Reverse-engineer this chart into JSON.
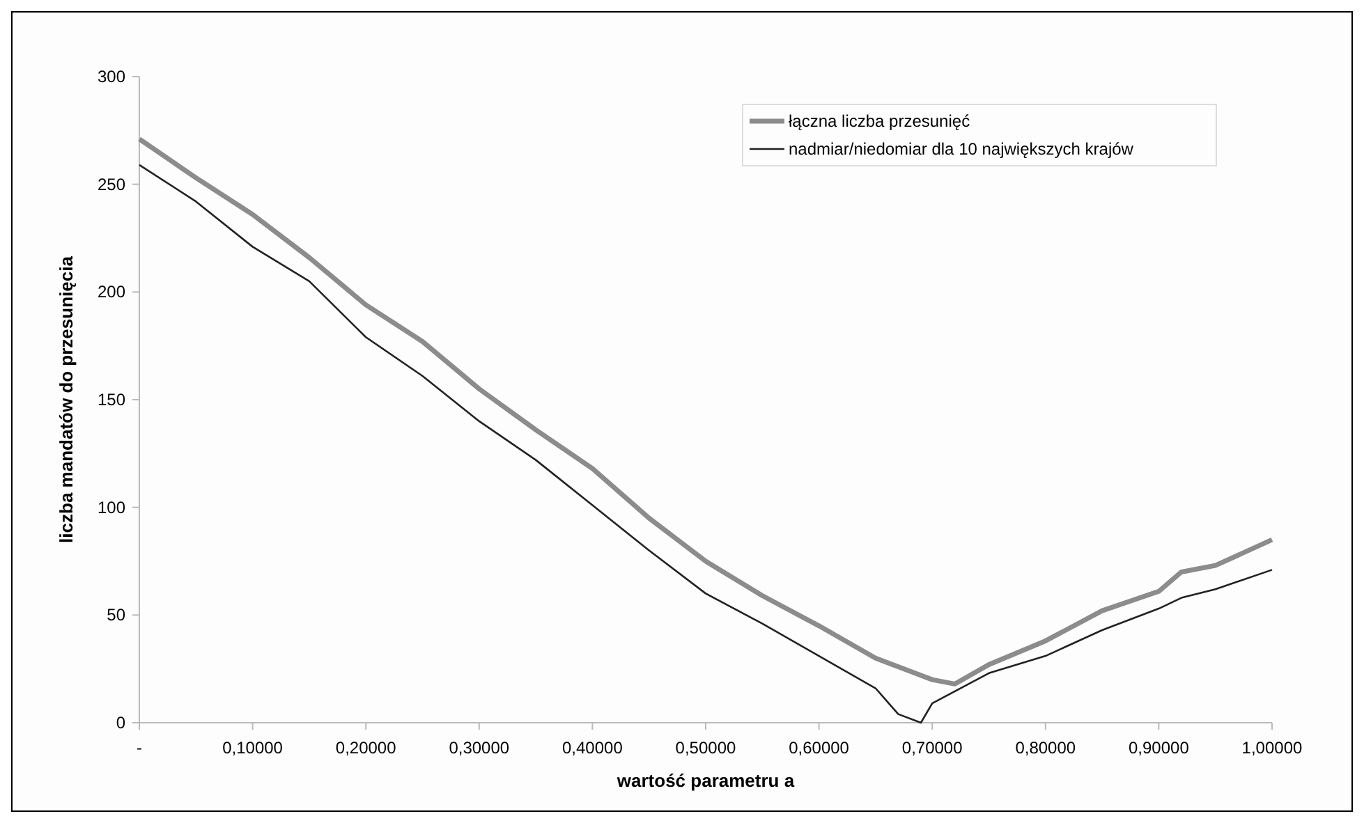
{
  "chart_data": {
    "type": "line",
    "xlabel": "wartość parametru a",
    "ylabel": "liczba mandatów do przesunięcia",
    "xlim": [
      0,
      1
    ],
    "xticks": [
      {
        "value": 0,
        "label": "-"
      },
      {
        "value": 0.1,
        "label": "0,10000"
      },
      {
        "value": 0.2,
        "label": "0,20000"
      },
      {
        "value": 0.3,
        "label": "0,30000"
      },
      {
        "value": 0.4,
        "label": "0,40000"
      },
      {
        "value": 0.5,
        "label": "0,50000"
      },
      {
        "value": 0.6,
        "label": "0,60000"
      },
      {
        "value": 0.7,
        "label": "0,70000"
      },
      {
        "value": 0.8,
        "label": "0,80000"
      },
      {
        "value": 0.9,
        "label": "0,90000"
      },
      {
        "value": 1,
        "label": "1,00000"
      }
    ],
    "ylim": [
      0,
      300
    ],
    "yticks": [
      0,
      50,
      100,
      150,
      200,
      250,
      300
    ],
    "grid": false,
    "legend": "top right",
    "marker": "none",
    "line_style": "solid",
    "series": [
      {
        "name": "łączna liczba przesunięć",
        "color": "#8c8c8c",
        "x": [
          0,
          0.05,
          0.1,
          0.15,
          0.2,
          0.25,
          0.3,
          0.35,
          0.4,
          0.45,
          0.5,
          0.55,
          0.6,
          0.65,
          0.68,
          0.7,
          0.72,
          0.75,
          0.8,
          0.85,
          0.9,
          0.92,
          0.95,
          1
        ],
        "values": [
          271,
          253,
          236,
          216,
          194,
          177,
          155,
          136,
          118,
          95,
          75,
          59,
          45,
          30,
          24,
          20,
          18,
          27,
          38,
          52,
          61,
          70,
          73,
          85
        ]
      },
      {
        "name": "nadmiar/niedomiar dla 10 największych krajów",
        "color": "#222222",
        "x": [
          0,
          0.05,
          0.1,
          0.15,
          0.2,
          0.25,
          0.3,
          0.35,
          0.4,
          0.45,
          0.5,
          0.55,
          0.6,
          0.65,
          0.67,
          0.69,
          0.7,
          0.75,
          0.8,
          0.85,
          0.9,
          0.92,
          0.95,
          1
        ],
        "values": [
          259,
          242,
          221,
          205,
          179,
          161,
          140,
          122,
          101,
          80,
          60,
          46,
          31,
          16,
          4,
          0,
          9,
          23,
          31,
          43,
          53,
          58,
          62,
          71
        ]
      }
    ]
  }
}
